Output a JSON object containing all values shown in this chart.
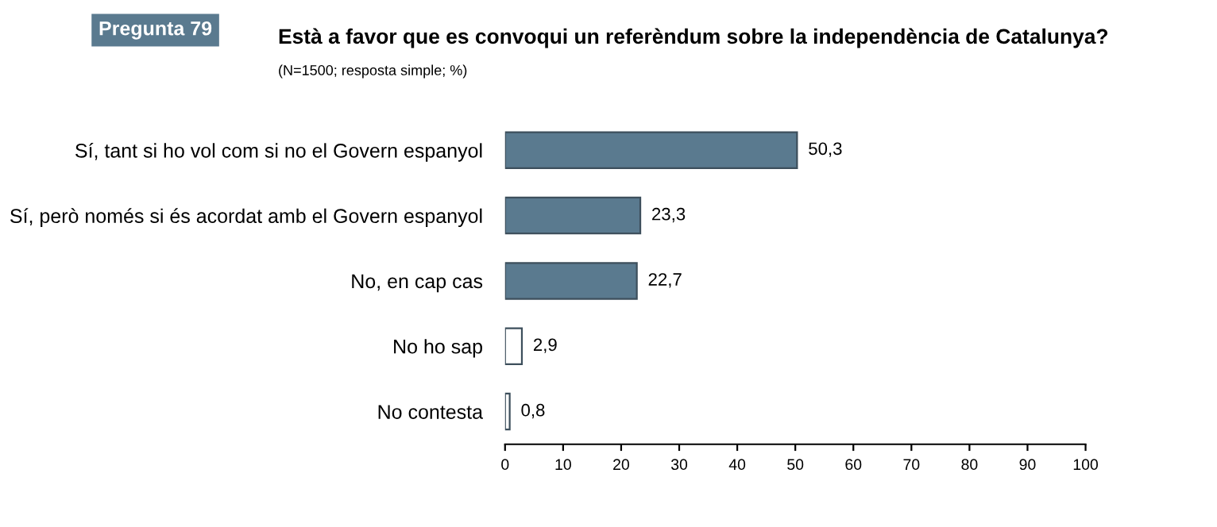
{
  "chart_data": {
    "type": "bar",
    "orientation": "horizontal",
    "title": "Està a favor que es convoqui un referèndum sobre la independència de Catalunya?",
    "subtitle": "(N=1500; resposta simple; %)",
    "annotations": [
      "Pregunta 79"
    ],
    "categories": [
      "Sí, tant si ho vol com si no el Govern espanyol",
      "Sí, però només si és acordat amb el Govern espanyol",
      "No, en cap cas",
      "No ho sap",
      "No contesta"
    ],
    "values": [
      50.3,
      23.3,
      22.7,
      2.9,
      0.8
    ],
    "value_labels": [
      "50,3",
      "23,3",
      "22,7",
      "2,9",
      "0,8"
    ],
    "colors": [
      "#5a7a8f",
      "#5a7a8f",
      "#5a7a8f",
      "#ffffff",
      "#ffffff"
    ],
    "xlim": [
      0,
      100
    ],
    "xticks": [
      0,
      10,
      20,
      30,
      40,
      50,
      60,
      70,
      80,
      90,
      100
    ],
    "grid": false,
    "legend": false
  }
}
